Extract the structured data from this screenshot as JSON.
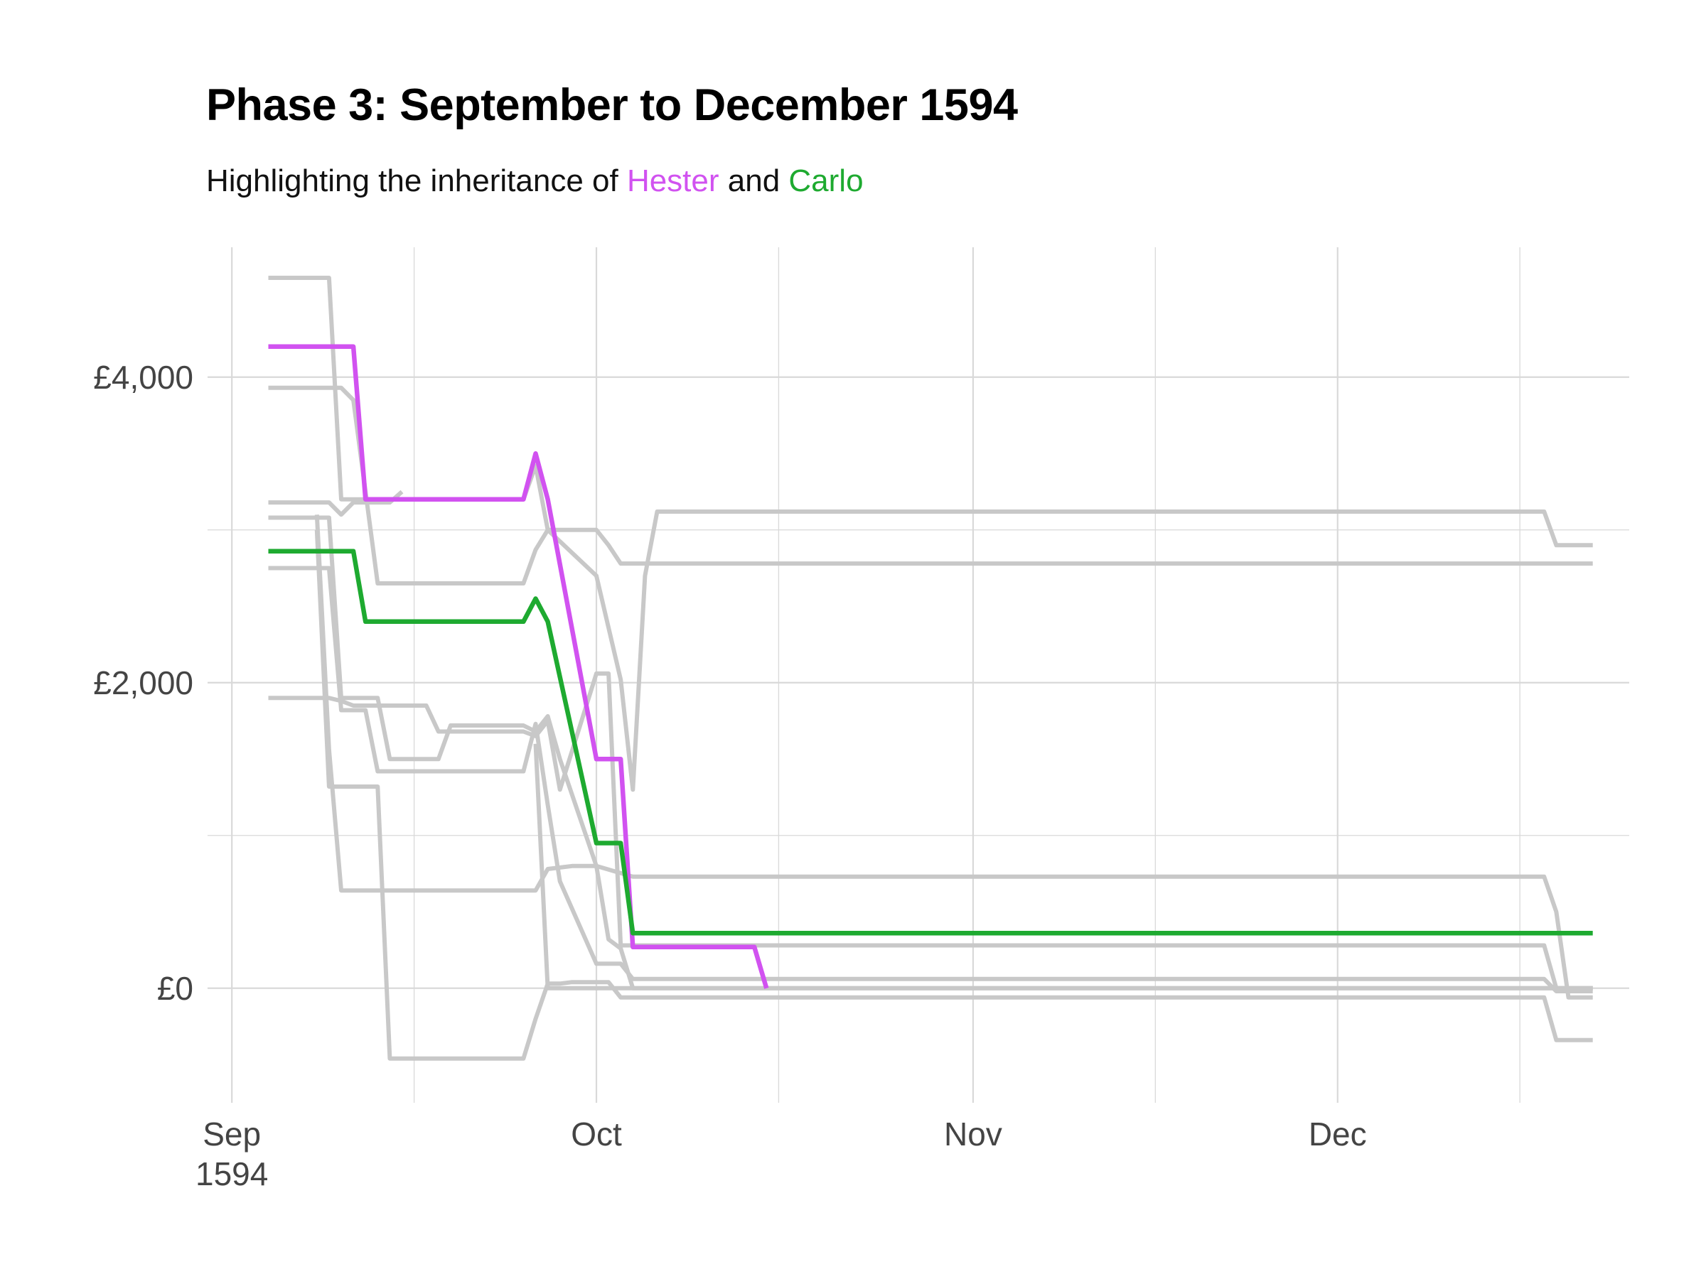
{
  "colors": {
    "hester": "#d152f0",
    "carlo": "#1eaa30",
    "background_series": "#c8c8c8",
    "grid": "#d9d9d9"
  },
  "chart_data": {
    "type": "line",
    "title": "Phase 3: September to December 1594",
    "subtitle": {
      "prefix": "Highlighting the inheritance of ",
      "highlight1": "Hester",
      "joiner": " and ",
      "highlight2": "Carlo"
    },
    "xlabel": "",
    "ylabel": "",
    "x_ticks": [
      {
        "date": "1594-09-01",
        "label": "Sep",
        "label2": "1594"
      },
      {
        "date": "1594-10-01",
        "label": "Oct",
        "label2": ""
      },
      {
        "date": "1594-11-01",
        "label": "Nov",
        "label2": ""
      },
      {
        "date": "1594-12-01",
        "label": "Dec",
        "label2": ""
      }
    ],
    "x_minor_ticks": [
      "1594-09-16",
      "1594-10-16",
      "1594-11-16",
      "1594-12-16"
    ],
    "xlim": [
      "1594-08-30",
      "1594-12-25"
    ],
    "y_ticks": [
      {
        "value": 0,
        "label": "£0"
      },
      {
        "value": 2000,
        "label": "£2,000"
      },
      {
        "value": 4000,
        "label": "£4,000"
      }
    ],
    "y_minor_ticks": [
      1000,
      3000
    ],
    "ylim": [
      -750,
      4850
    ],
    "grid": true,
    "series": [
      {
        "highlight": "hester",
        "points": [
          [
            "1594-09-04",
            4200
          ],
          [
            "1594-09-11",
            4200
          ],
          [
            "1594-09-12",
            3200
          ],
          [
            "1594-09-25",
            3200
          ],
          [
            "1594-09-26",
            3500
          ],
          [
            "1594-09-27",
            3200
          ],
          [
            "1594-10-01",
            1500
          ],
          [
            "1594-10-03",
            1500
          ],
          [
            "1594-10-04",
            270
          ],
          [
            "1594-10-14",
            270
          ],
          [
            "1594-10-15",
            0
          ]
        ]
      },
      {
        "highlight": "carlo",
        "points": [
          [
            "1594-09-04",
            2860
          ],
          [
            "1594-09-11",
            2860
          ],
          [
            "1594-09-12",
            2400
          ],
          [
            "1594-09-25",
            2400
          ],
          [
            "1594-09-26",
            2550
          ],
          [
            "1594-09-27",
            2400
          ],
          [
            "1594-10-01",
            950
          ],
          [
            "1594-10-03",
            950
          ],
          [
            "1594-10-04",
            360
          ],
          [
            "1594-12-22",
            360
          ]
        ]
      },
      {
        "points": [
          [
            "1594-09-04",
            4650
          ],
          [
            "1594-09-09",
            4650
          ],
          [
            "1594-09-10",
            3200
          ],
          [
            "1594-09-13",
            3200
          ],
          [
            "1594-09-14",
            3200
          ],
          [
            "1594-09-25",
            3200
          ],
          [
            "1594-09-26",
            3420
          ],
          [
            "1594-09-27",
            3000
          ],
          [
            "1594-10-01",
            2700
          ],
          [
            "1594-10-03",
            2020
          ],
          [
            "1594-10-04",
            1300
          ],
          [
            "1594-10-05",
            2700
          ],
          [
            "1594-10-06",
            3120
          ],
          [
            "1594-12-18",
            3120
          ],
          [
            "1594-12-19",
            2900
          ],
          [
            "1594-12-22",
            2900
          ]
        ]
      },
      {
        "points": [
          [
            "1594-09-04",
            3930
          ],
          [
            "1594-09-10",
            3930
          ],
          [
            "1594-09-11",
            3850
          ],
          [
            "1594-09-13",
            2650
          ],
          [
            "1594-09-25",
            2650
          ],
          [
            "1594-09-26",
            2870
          ],
          [
            "1594-09-27",
            3000
          ],
          [
            "1594-10-01",
            3000
          ],
          [
            "1594-10-02",
            2900
          ],
          [
            "1594-10-03",
            2780
          ],
          [
            "1594-12-22",
            2780
          ]
        ]
      },
      {
        "points": [
          [
            "1594-09-04",
            3180
          ],
          [
            "1594-09-09",
            3180
          ],
          [
            "1594-09-10",
            3100
          ],
          [
            "1594-09-11",
            3180
          ],
          [
            "1594-09-14",
            3180
          ],
          [
            "1594-09-15",
            3250
          ]
        ]
      },
      {
        "points": [
          [
            "1594-09-04",
            3080
          ],
          [
            "1594-09-09",
            3080
          ],
          [
            "1594-09-10",
            1900
          ],
          [
            "1594-09-13",
            1900
          ],
          [
            "1594-09-14",
            1500
          ],
          [
            "1594-09-18",
            1500
          ],
          [
            "1594-09-19",
            1720
          ],
          [
            "1594-09-25",
            1720
          ],
          [
            "1594-09-26",
            1680
          ],
          [
            "1594-09-27",
            1780
          ],
          [
            "1594-09-28",
            1500
          ],
          [
            "1594-10-01",
            800
          ],
          [
            "1594-10-04",
            730
          ],
          [
            "1594-12-18",
            730
          ],
          [
            "1594-12-19",
            500
          ],
          [
            "1594-12-20",
            -60
          ],
          [
            "1594-12-22",
            -60
          ]
        ]
      },
      {
        "points": [
          [
            "1594-09-04",
            2750
          ],
          [
            "1594-09-09",
            2750
          ],
          [
            "1594-09-10",
            1820
          ],
          [
            "1594-09-12",
            1820
          ],
          [
            "1594-09-13",
            1420
          ],
          [
            "1594-09-25",
            1420
          ],
          [
            "1594-09-26",
            1730
          ],
          [
            "1594-09-27",
            1200
          ],
          [
            "1594-09-28",
            700
          ],
          [
            "1594-10-01",
            160
          ],
          [
            "1594-10-03",
            160
          ],
          [
            "1594-10-04",
            60
          ],
          [
            "1594-10-05",
            60
          ],
          [
            "1594-12-18",
            60
          ],
          [
            "1594-12-19",
            -20
          ],
          [
            "1594-12-22",
            -20
          ]
        ]
      },
      {
        "points": [
          [
            "1594-09-04",
            1900
          ],
          [
            "1594-09-09",
            1900
          ],
          [
            "1594-09-10",
            1880
          ],
          [
            "1594-09-11",
            1850
          ],
          [
            "1594-09-17",
            1850
          ],
          [
            "1594-09-18",
            1680
          ],
          [
            "1594-09-25",
            1680
          ],
          [
            "1594-09-26",
            1650
          ],
          [
            "1594-09-27",
            1750
          ],
          [
            "1594-09-28",
            1300
          ],
          [
            "1594-10-01",
            2060
          ],
          [
            "1594-10-02",
            2060
          ],
          [
            "1594-10-03",
            280
          ],
          [
            "1594-10-04",
            280
          ],
          [
            "1594-12-18",
            280
          ],
          [
            "1594-12-19",
            0
          ],
          [
            "1594-12-22",
            0
          ]
        ]
      },
      {
        "points": [
          [
            "1594-09-08",
            3000
          ],
          [
            "1594-09-09",
            1320
          ],
          [
            "1594-09-13",
            1320
          ],
          [
            "1594-09-14",
            -460
          ],
          [
            "1594-09-25",
            -460
          ],
          [
            "1594-09-26",
            -200
          ],
          [
            "1594-09-27",
            30
          ],
          [
            "1594-09-28",
            30
          ],
          [
            "1594-09-29",
            40
          ],
          [
            "1594-10-02",
            40
          ],
          [
            "1594-10-03",
            -60
          ],
          [
            "1594-12-18",
            -60
          ],
          [
            "1594-12-19",
            -340
          ],
          [
            "1594-12-22",
            -340
          ]
        ]
      },
      {
        "points": [
          [
            "1594-09-08",
            3100
          ],
          [
            "1594-09-09",
            1560
          ],
          [
            "1594-09-10",
            640
          ],
          [
            "1594-09-18",
            640
          ],
          [
            "1594-09-26",
            640
          ],
          [
            "1594-09-27",
            780
          ],
          [
            "1594-09-29",
            800
          ],
          [
            "1594-10-01",
            800
          ],
          [
            "1594-10-02",
            320
          ],
          [
            "1594-10-03",
            260
          ],
          [
            "1594-10-04",
            0
          ],
          [
            "1594-12-22",
            0
          ]
        ]
      },
      {
        "points": [
          [
            "1594-09-26",
            1600
          ],
          [
            "1594-09-27",
            0
          ],
          [
            "1594-12-22",
            0
          ]
        ]
      }
    ]
  }
}
